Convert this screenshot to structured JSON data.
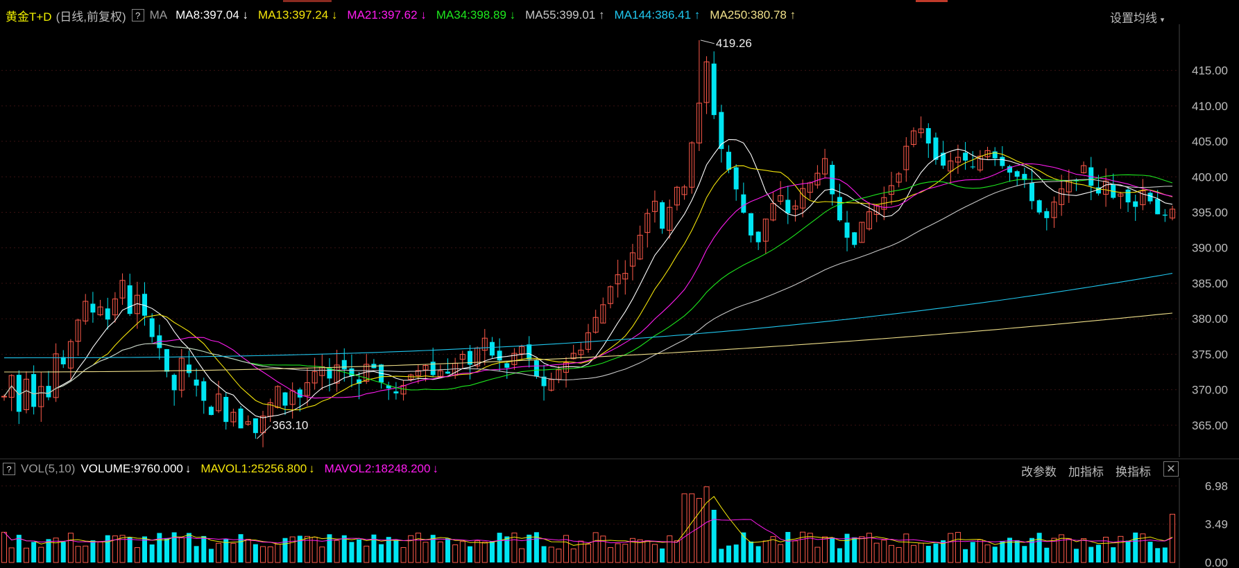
{
  "header": {
    "title": "黄金T+D",
    "subtitle": "(日线,前复权)",
    "help": "?",
    "ma_label": "MA",
    "settings": "设置均线"
  },
  "ma_legend": [
    {
      "label": "MA8:397.04",
      "arrow": "↓",
      "color": "#ffffff"
    },
    {
      "label": "MA13:397.24",
      "arrow": "↓",
      "color": "#f5e60a"
    },
    {
      "label": "MA21:397.62",
      "arrow": "↓",
      "color": "#ff1cf0"
    },
    {
      "label": "MA34:398.89",
      "arrow": "↓",
      "color": "#1ee81e"
    },
    {
      "label": "MA55:399.01",
      "arrow": "↑",
      "color": "#c8c8c8"
    },
    {
      "label": "MA144:386.41",
      "arrow": "↑",
      "color": "#20c8f0"
    },
    {
      "label": "MA250:380.78",
      "arrow": "↑",
      "color": "#f0e08a"
    }
  ],
  "vol_header": {
    "help": "?",
    "name": "VOL(5,10)",
    "volume": "VOLUME:9760.000",
    "volume_arrow": "↓",
    "mavol1": "MAVOL1:25256.800",
    "mavol1_arrow": "↓",
    "mavol2": "MAVOL2:18248.200",
    "mavol2_arrow": "↓",
    "btn_params": "改参数",
    "btn_add": "加指标",
    "btn_switch": "换指标",
    "close": "✕"
  },
  "colors": {
    "up": "#ff5a4a",
    "down": "#00e5f2",
    "grid": "#3a1212",
    "axis_text": "#bdbdbd"
  },
  "chart_data": [
    {
      "type": "candlestick",
      "title": "黄金T+D",
      "y_ticks": [
        365,
        370,
        375,
        380,
        385,
        390,
        395,
        400,
        405,
        410,
        415
      ],
      "y_tick_labels": [
        "365.00",
        "370.00",
        "375.00",
        "380.00",
        "385.00",
        "390.00",
        "395.00",
        "400.00",
        "405.00",
        "410.00",
        "415.00"
      ],
      "ylim": [
        360.5,
        421.5
      ],
      "annotations": [
        {
          "label": "419.26",
          "value": 419.26,
          "index": 94
        },
        {
          "label": "363.10",
          "value": 363.1,
          "index": 34
        }
      ],
      "key_prices": [
        369,
        372,
        367,
        372,
        368,
        371,
        369,
        375,
        373,
        377,
        380,
        382,
        381,
        382,
        380,
        383,
        385,
        381,
        383,
        380,
        378,
        376,
        372,
        370,
        374,
        372,
        371,
        368,
        367,
        369,
        366,
        367,
        365,
        366,
        364,
        366,
        368,
        370,
        368,
        370,
        369,
        371,
        372,
        373,
        371,
        374,
        373,
        372,
        371,
        374,
        373,
        371,
        370,
        369,
        371,
        372,
        373,
        374,
        372,
        373,
        372,
        374,
        375,
        373,
        376,
        377,
        375,
        374,
        373,
        375,
        376,
        374,
        372,
        370,
        371,
        373,
        374,
        375,
        376,
        378,
        380,
        382,
        385,
        386,
        387,
        389,
        392,
        395,
        397,
        393,
        396,
        398,
        399,
        405,
        410,
        416,
        409,
        404,
        401,
        398,
        395,
        392,
        391,
        394,
        396,
        397,
        395,
        396,
        398,
        399,
        401,
        402,
        397,
        394,
        392,
        391,
        393,
        395,
        396,
        397,
        399,
        401,
        404,
        406,
        407,
        405,
        403,
        401,
        402,
        403,
        402,
        401,
        403,
        404,
        403,
        402,
        401,
        400,
        399,
        397,
        395,
        394,
        396,
        398,
        399,
        400,
        401,
        399,
        398,
        399,
        397,
        398,
        397,
        396,
        398,
        397,
        395,
        394,
        395
      ]
    },
    {
      "type": "bar",
      "title": "VOL(5,10)",
      "y_ticks": [
        0,
        3.49,
        6.98
      ],
      "y_tick_labels": [
        "0.00",
        "3.49",
        "6.98"
      ],
      "ylim": [
        0,
        7.2
      ]
    }
  ]
}
